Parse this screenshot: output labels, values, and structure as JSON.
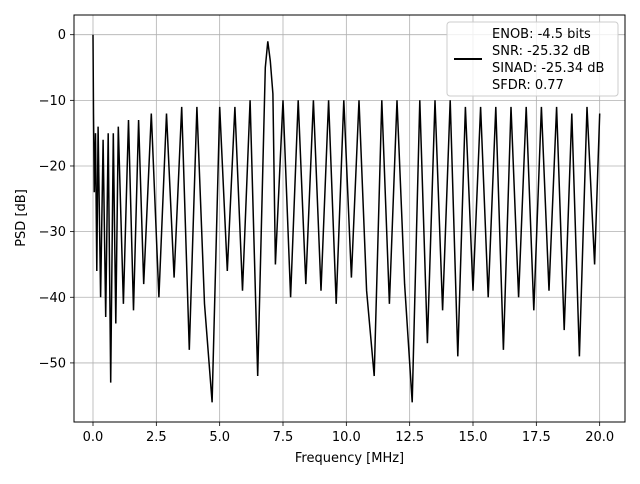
{
  "chart_data": {
    "type": "line",
    "title": "",
    "xlabel": "Frequency [MHz]",
    "ylabel": "PSD [dB]",
    "xlim": [
      -0.75,
      21.0
    ],
    "ylim": [
      -59.0,
      3.0
    ],
    "x_ticks": [
      0.0,
      2.5,
      5.0,
      7.5,
      10.0,
      12.5,
      15.0,
      17.5,
      20.0
    ],
    "x_tick_labels": [
      "0.0",
      "2.5",
      "5.0",
      "7.5",
      "10.0",
      "12.5",
      "15.0",
      "17.5",
      "20.0"
    ],
    "y_ticks": [
      0,
      -10,
      -20,
      -30,
      -40,
      -50
    ],
    "y_tick_labels": [
      "0",
      "−10",
      "−20",
      "−30",
      "−40",
      "−50"
    ],
    "grid": true,
    "legend_position": "top-right",
    "legend_lines": [
      "ENOB: -4.5 bits",
      "SNR: -25.32 dB",
      "SINAD: -25.34 dB",
      "SFDR: 0.77"
    ],
    "series_color": "#000000",
    "series": [
      {
        "x": [
          0.0,
          0.02,
          0.05,
          0.1,
          0.15,
          0.2,
          0.3,
          0.4,
          0.5,
          0.6,
          0.7,
          0.8,
          0.9,
          1.0,
          1.2,
          1.4,
          1.6,
          1.8,
          2.0,
          2.3,
          2.6,
          2.9,
          3.2,
          3.5,
          3.8,
          4.1,
          4.4,
          4.7,
          5.0,
          5.3,
          5.6,
          5.9,
          6.2,
          6.5,
          6.8,
          6.9,
          7.0,
          7.1,
          7.2,
          7.5,
          7.8,
          8.1,
          8.4,
          8.7,
          9.0,
          9.3,
          9.6,
          9.9,
          10.2,
          10.5,
          10.8,
          11.1,
          11.4,
          11.7,
          12.0,
          12.3,
          12.6,
          12.9,
          13.2,
          13.5,
          13.8,
          14.1,
          14.4,
          14.7,
          15.0,
          15.3,
          15.6,
          15.9,
          16.2,
          16.5,
          16.8,
          17.1,
          17.4,
          17.7,
          18.0,
          18.3,
          18.6,
          18.9,
          19.2,
          19.5,
          19.8,
          20.0
        ],
        "y": [
          0.0,
          -12.0,
          -24.0,
          -15.0,
          -36.0,
          -14.0,
          -40.0,
          -16.0,
          -43.0,
          -15.0,
          -53.0,
          -15.0,
          -44.0,
          -14.0,
          -41.0,
          -13.0,
          -42.0,
          -13.0,
          -38.0,
          -12.0,
          -40.0,
          -12.0,
          -37.0,
          -11.0,
          -48.0,
          -11.0,
          -41.0,
          -56.0,
          -11.0,
          -36.0,
          -11.0,
          -39.0,
          -10.0,
          -52.0,
          -5.0,
          -1.0,
          -4.0,
          -9.0,
          -35.0,
          -10.0,
          -40.0,
          -10.0,
          -38.0,
          -10.0,
          -39.0,
          -10.0,
          -41.0,
          -10.0,
          -37.0,
          -10.0,
          -39.0,
          -52.0,
          -10.0,
          -41.0,
          -10.0,
          -38.0,
          -56.0,
          -10.0,
          -47.0,
          -10.0,
          -42.0,
          -10.0,
          -49.0,
          -11.0,
          -39.0,
          -11.0,
          -40.0,
          -11.0,
          -48.0,
          -11.0,
          -40.0,
          -11.0,
          -42.0,
          -11.0,
          -39.0,
          -11.0,
          -45.0,
          -12.0,
          -49.0,
          -11.0,
          -35.0,
          -12.0
        ]
      }
    ]
  }
}
